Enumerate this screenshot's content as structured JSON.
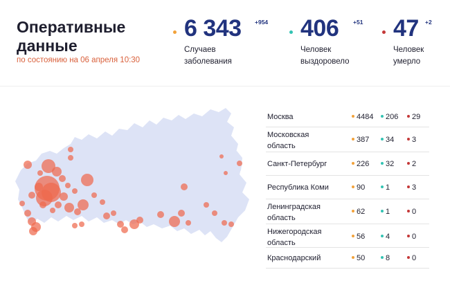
{
  "header": {
    "title_line1": "Оперативные",
    "title_line2": "данные",
    "subtitle": "по состоянию на 06 апреля 10:30"
  },
  "stats": [
    {
      "value": "6 343",
      "delta": "+954",
      "label_line1": "Случаев",
      "label_line2": "заболевания",
      "dot_color": "#f2a23a"
    },
    {
      "value": "406",
      "delta": "+51",
      "label_line1": "Человек",
      "label_line2": "выздоровело",
      "dot_color": "#33c3b3"
    },
    {
      "value": "47",
      "delta": "+2",
      "label_line1": "Человек",
      "label_line2": "умерло",
      "dot_color": "#c43838"
    }
  ],
  "regions": [
    {
      "line1": "Москва",
      "line2": "",
      "cases": "4484",
      "recovered": "206",
      "deaths": "29"
    },
    {
      "line1": "Московская",
      "line2": "область",
      "cases": "387",
      "recovered": "34",
      "deaths": "3"
    },
    {
      "line1": "Санкт-Петербург",
      "line2": "",
      "cases": "226",
      "recovered": "32",
      "deaths": "2"
    },
    {
      "line1": "Республика Коми",
      "line2": "",
      "cases": "90",
      "recovered": "1",
      "deaths": "3"
    },
    {
      "line1": "Ленинградская",
      "line2": "область",
      "cases": "62",
      "recovered": "1",
      "deaths": "0"
    },
    {
      "line1": "Нижегородская",
      "line2": "область",
      "cases": "56",
      "recovered": "4",
      "deaths": "0"
    },
    {
      "line1": "Краснодарский",
      "line2": "",
      "cases": "50",
      "recovered": "8",
      "deaths": "0"
    }
  ],
  "map": {
    "land_color": "#dde3f6",
    "bubble_color": "#ee6a4e"
  }
}
